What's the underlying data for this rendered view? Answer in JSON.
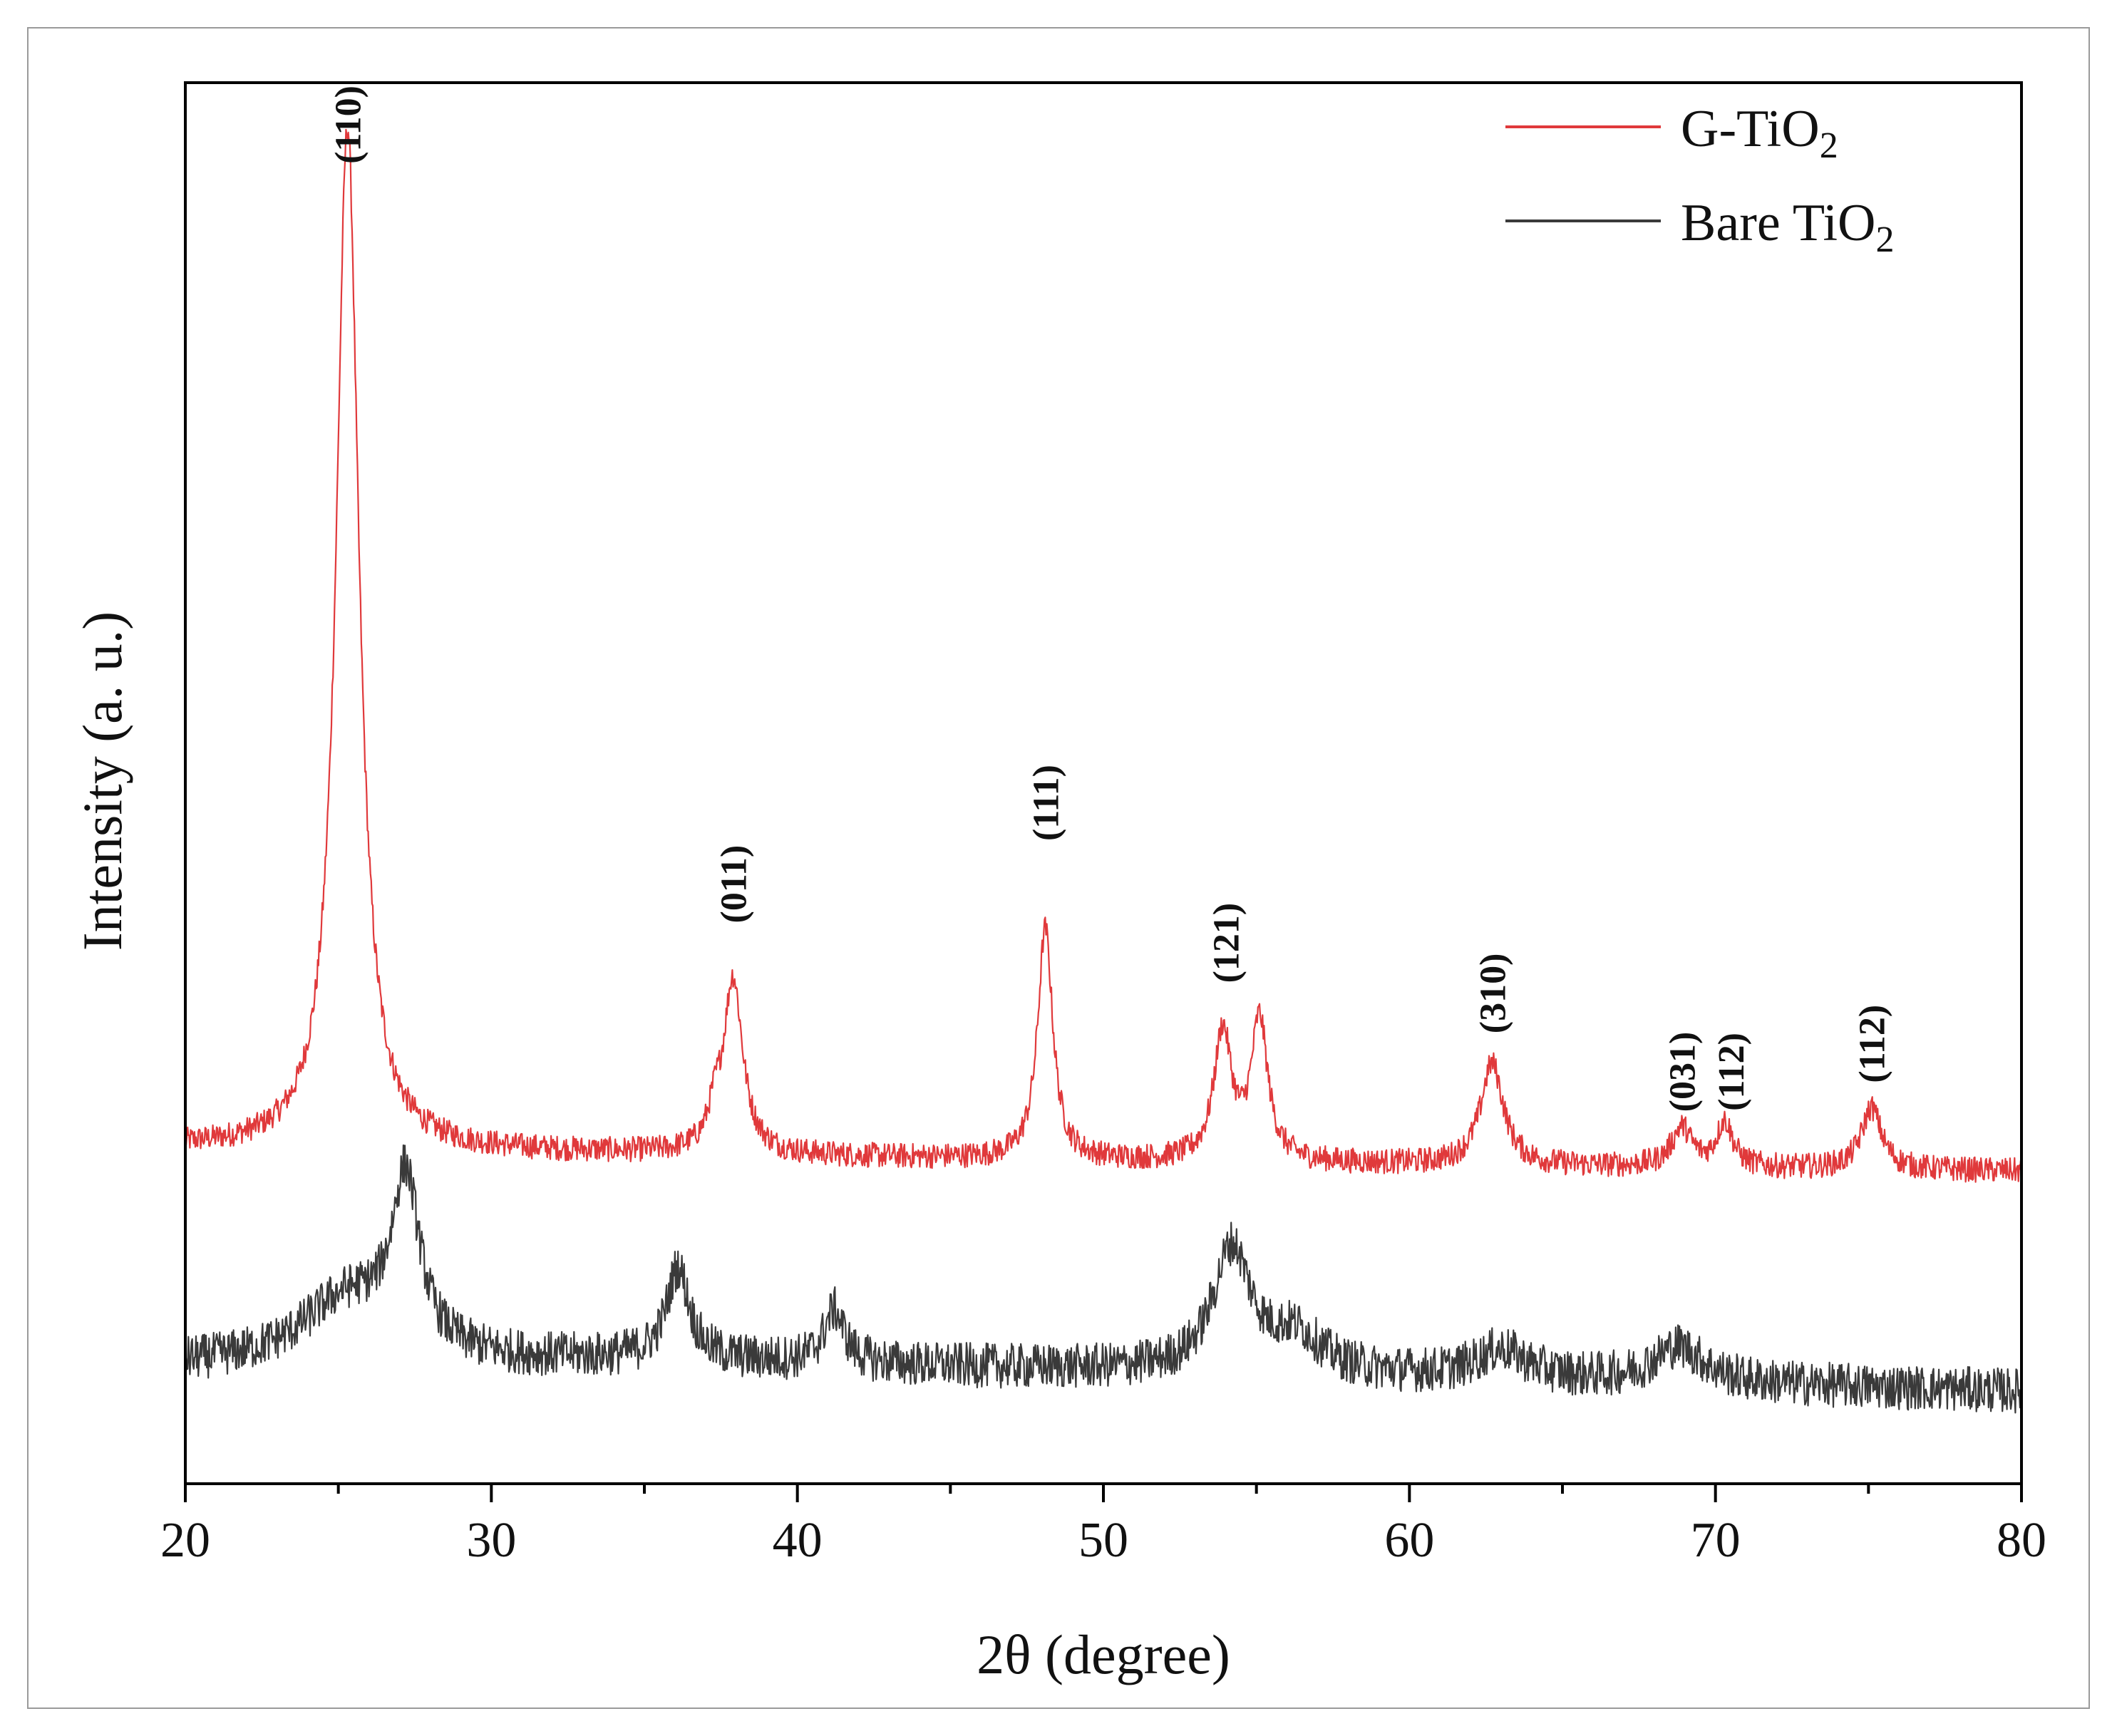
{
  "chart_data": {
    "type": "line",
    "title": "",
    "xlabel": "2θ (degree)",
    "ylabel": "Intensity (a. u.)",
    "xlim": [
      20,
      80
    ],
    "ylim": [
      0,
      100
    ],
    "xticks": [
      20,
      30,
      40,
      50,
      60,
      70,
      80
    ],
    "legend_position": "top-right",
    "grid": false,
    "series": [
      {
        "name": "G-TiO2",
        "label_main": "G-TiO",
        "label_sub": "2",
        "color": "#e0393b",
        "baseline": [
          [
            20,
            24.0
          ],
          [
            35,
            23.5
          ],
          [
            50,
            23.0
          ],
          [
            65,
            22.6
          ],
          [
            80,
            22.3
          ]
        ],
        "peaks": [
          {
            "center": 25.3,
            "height": 73.0,
            "width": 0.45
          },
          {
            "center": 37.3,
            "height": 2.0,
            "width": 0.25
          },
          {
            "center": 37.9,
            "height": 12.5,
            "width": 0.38
          },
          {
            "center": 48.1,
            "height": 16.5,
            "width": 0.3
          },
          {
            "center": 53.9,
            "height": 9.2,
            "width": 0.35
          },
          {
            "center": 55.1,
            "height": 10.0,
            "width": 0.33
          },
          {
            "center": 62.7,
            "height": 7.3,
            "width": 0.45
          },
          {
            "center": 68.9,
            "height": 2.8,
            "width": 0.4
          },
          {
            "center": 70.3,
            "height": 3.2,
            "width": 0.32
          },
          {
            "center": 75.1,
            "height": 4.4,
            "width": 0.4
          }
        ],
        "noise": 0.9
      },
      {
        "name": "Bare TiO2",
        "label_main": "Bare TiO",
        "label_sub": "2",
        "color": "#3a3a3a",
        "baseline": [
          [
            20,
            8.4
          ],
          [
            35,
            8.8
          ],
          [
            45,
            8.3
          ],
          [
            60,
            7.6
          ],
          [
            80,
            6.6
          ]
        ],
        "peaks": [
          {
            "center": 25.3,
            "height": 4.6,
            "width": 1.8
          },
          {
            "center": 27.2,
            "height": 12.0,
            "width": 0.55
          },
          {
            "center": 36.1,
            "height": 6.5,
            "width": 0.45
          },
          {
            "center": 41.2,
            "height": 3.8,
            "width": 0.4
          },
          {
            "center": 54.2,
            "height": 8.8,
            "width": 0.75
          },
          {
            "center": 56.3,
            "height": 2.6,
            "width": 1.0
          },
          {
            "center": 63.0,
            "height": 2.0,
            "width": 1.0
          },
          {
            "center": 68.8,
            "height": 2.6,
            "width": 1.0
          }
        ],
        "noise": 1.6
      }
    ],
    "annotations": [
      {
        "label": "(110)",
        "x": 25.3,
        "y": 97.0
      },
      {
        "label": "(011)",
        "x": 37.9,
        "y": 42.8
      },
      {
        "label": "(111)",
        "x": 48.1,
        "y": 48.6
      },
      {
        "label": "(121)",
        "x": 54.0,
        "y": 38.6
      },
      {
        "label": "(310)",
        "x": 62.7,
        "y": 35.0
      },
      {
        "label": "(031)",
        "x": 68.9,
        "y": 29.4
      },
      {
        "label": "(112)",
        "x": 70.5,
        "y": 29.4
      },
      {
        "label": "(112)",
        "x": 75.1,
        "y": 31.4
      }
    ]
  }
}
